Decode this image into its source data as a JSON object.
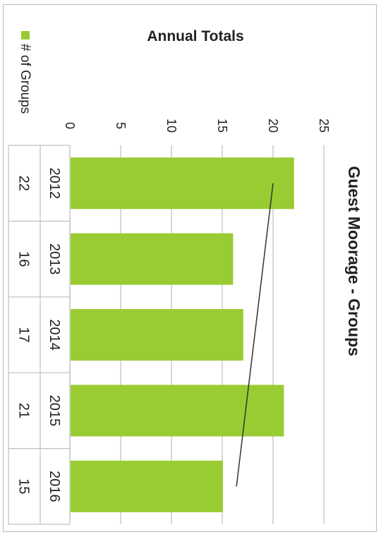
{
  "chart_data": {
    "type": "bar",
    "orientation": "rotated-90",
    "title": "Guest Moorage - Groups",
    "subtitle": "Annual Totals",
    "categories": [
      "2012",
      "2013",
      "2014",
      "2015",
      "2016"
    ],
    "series": [
      {
        "name": "# of Groups",
        "values": [
          22,
          16,
          17,
          21,
          15
        ],
        "color": "#99cc33"
      }
    ],
    "ylim": [
      0,
      25
    ],
    "y_ticks": [
      "0",
      "5",
      "10",
      "15",
      "20",
      "25"
    ],
    "grid": true,
    "trendline": true,
    "data_table": true,
    "trend_color": "#333333",
    "axis_color": "#bfbfbf"
  }
}
